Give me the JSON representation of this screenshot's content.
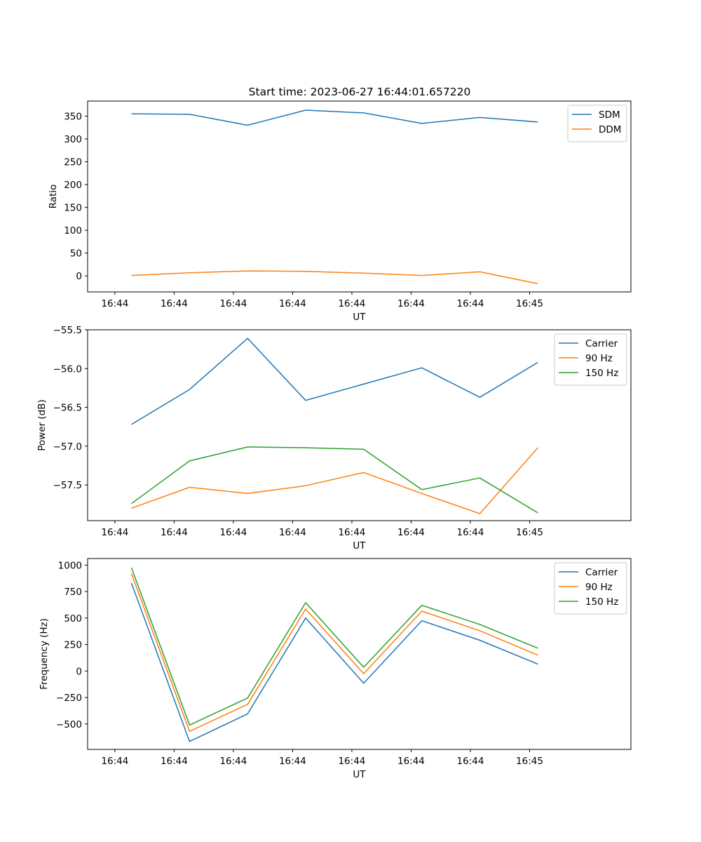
{
  "figure": {
    "title": "Start time: 2023-06-27 16:44:01.657220"
  },
  "colors": {
    "blue": "#1f77b4",
    "orange": "#ff7f0e",
    "green": "#2ca02c",
    "axis": "#000000",
    "legend_border": "#cccccc"
  },
  "chart_data": [
    {
      "type": "line",
      "xlabel": "UT",
      "ylabel": "Ratio",
      "xticks": [
        "16:44",
        "16:44",
        "16:44",
        "16:44",
        "16:44",
        "16:44",
        "16:44",
        "16:45"
      ],
      "xlim": [
        -0.46,
        8.71
      ],
      "x": [
        0.28,
        1.26,
        2.24,
        3.22,
        4.2,
        5.18,
        6.16,
        7.14
      ],
      "ylim": [
        -35,
        383
      ],
      "yticks": [
        0,
        50,
        100,
        150,
        200,
        250,
        300,
        350
      ],
      "legend_position": "upper right",
      "series": [
        {
          "name": "SDM",
          "color": "#1f77b4",
          "values": [
            355,
            354,
            330,
            363,
            357,
            334,
            347,
            337
          ]
        },
        {
          "name": "DDM",
          "color": "#ff7f0e",
          "values": [
            1,
            7,
            11,
            10,
            6,
            1,
            9,
            -17
          ]
        }
      ]
    },
    {
      "type": "line",
      "xlabel": "UT",
      "ylabel": "Power (dB)",
      "xticks": [
        "16:44",
        "16:44",
        "16:44",
        "16:44",
        "16:44",
        "16:44",
        "16:44",
        "16:45"
      ],
      "xlim": [
        -0.46,
        8.71
      ],
      "x": [
        0.28,
        1.26,
        2.24,
        3.22,
        4.2,
        5.18,
        6.16,
        7.14
      ],
      "ylim": [
        -57.96,
        -55.5
      ],
      "yticks": [
        -57.5,
        -57.0,
        -56.5,
        -56.0,
        -55.5
      ],
      "ytick_labels": [
        "−57.5",
        "−57.0",
        "−56.5",
        "−56.0",
        "−55.5"
      ],
      "legend_position": "upper right",
      "series": [
        {
          "name": "Carrier",
          "color": "#1f77b4",
          "values": [
            -56.72,
            -56.27,
            -55.61,
            -56.41,
            -56.2,
            -55.99,
            -56.37,
            -55.92
          ]
        },
        {
          "name": "90 Hz",
          "color": "#ff7f0e",
          "values": [
            -57.8,
            -57.53,
            -57.61,
            -57.51,
            -57.34,
            -57.61,
            -57.87,
            -57.02
          ]
        },
        {
          "name": "150 Hz",
          "color": "#2ca02c",
          "values": [
            -57.74,
            -57.19,
            -57.01,
            -57.02,
            -57.04,
            -57.56,
            -57.41,
            -57.86
          ]
        }
      ]
    },
    {
      "type": "line",
      "xlabel": "UT",
      "ylabel": "Frequency (Hz)",
      "xticks": [
        "16:44",
        "16:44",
        "16:44",
        "16:44",
        "16:44",
        "16:44",
        "16:44",
        "16:45"
      ],
      "xlim": [
        -0.46,
        8.71
      ],
      "x": [
        0.28,
        1.26,
        2.24,
        3.22,
        4.2,
        5.18,
        6.16,
        7.14
      ],
      "ylim": [
        -740,
        1062
      ],
      "yticks": [
        -500,
        -250,
        0,
        250,
        500,
        750,
        1000
      ],
      "ytick_labels": [
        "−500",
        "−250",
        "0",
        "250",
        "500",
        "750",
        "1000"
      ],
      "legend_position": "upper right",
      "series": [
        {
          "name": "Carrier",
          "color": "#1f77b4",
          "values": [
            830,
            -665,
            -405,
            500,
            -115,
            475,
            290,
            65
          ]
        },
        {
          "name": "90 Hz",
          "color": "#ff7f0e",
          "values": [
            920,
            -570,
            -315,
            585,
            -25,
            565,
            380,
            150
          ]
        },
        {
          "name": "150 Hz",
          "color": "#2ca02c",
          "values": [
            975,
            -510,
            -255,
            645,
            35,
            620,
            440,
            215
          ]
        }
      ]
    }
  ]
}
